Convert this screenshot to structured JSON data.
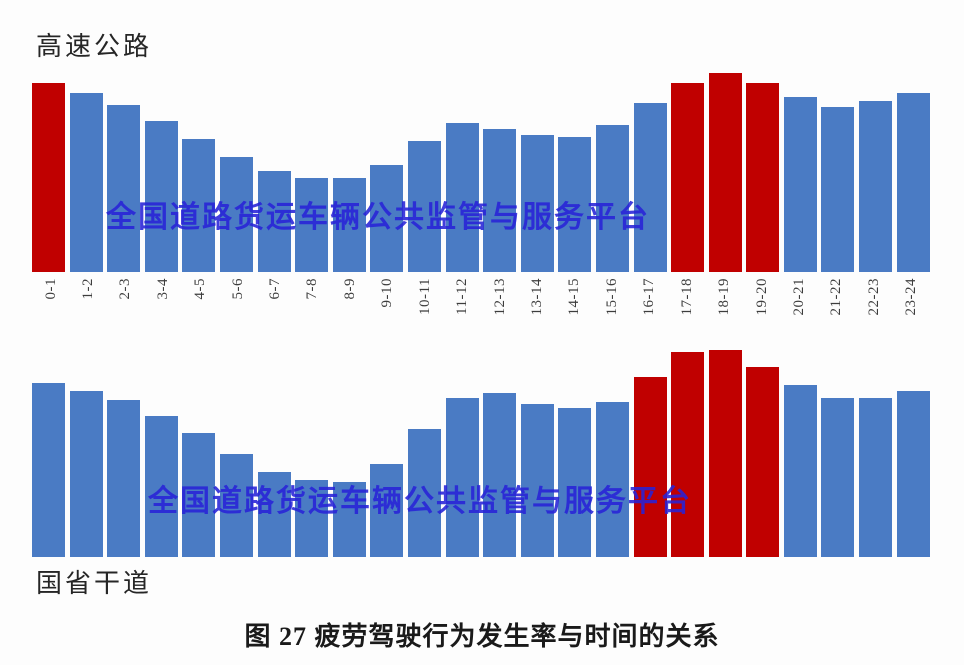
{
  "page": {
    "caption": "图 27 疲劳驾驶行为发生率与时间的关系",
    "watermark_text": "全国道路货运车辆公共监管与服务平台"
  },
  "colors": {
    "bar_blue": "#4A7BC4",
    "bar_red": "#C00000",
    "watermark_blue": "#2823D8",
    "title_text": "#262626",
    "tick_text": "#3D3D3D",
    "background": "#FDFDFD"
  },
  "chart_data": [
    {
      "type": "bar",
      "title": "高速公路",
      "categories": [
        "0-1",
        "1-2",
        "2-3",
        "3-4",
        "4-5",
        "5-6",
        "6-7",
        "7-8",
        "8-9",
        "9-10",
        "10-11",
        "11-12",
        "12-13",
        "13-14",
        "14-15",
        "15-16",
        "16-17",
        "17-18",
        "18-19",
        "19-20",
        "20-21",
        "21-22",
        "22-23",
        "23-24"
      ],
      "values": [
        95,
        90,
        84,
        76,
        67,
        58,
        51,
        47,
        47,
        54,
        66,
        75,
        72,
        69,
        68,
        74,
        85,
        95,
        100,
        95,
        88,
        83,
        86,
        90
      ],
      "value_unit": "percent_of_peak_bar (no numeric y-axis shown in figure)",
      "highlighted_categories": [
        "0-1",
        "17-18",
        "18-19",
        "19-20"
      ],
      "xlabel": "",
      "ylabel": "",
      "x_tick_rotation": -90,
      "gridlines": false,
      "legend": "none"
    },
    {
      "type": "bar",
      "title": "国省干道",
      "categories": [
        "0-1",
        "1-2",
        "2-3",
        "3-4",
        "4-5",
        "5-6",
        "6-7",
        "7-8",
        "8-9",
        "9-10",
        "10-11",
        "11-12",
        "12-13",
        "13-14",
        "14-15",
        "15-16",
        "16-17",
        "17-18",
        "18-19",
        "19-20",
        "20-21",
        "21-22",
        "22-23",
        "23-24"
      ],
      "values": [
        84,
        80,
        76,
        68,
        60,
        50,
        41,
        37,
        36,
        45,
        62,
        77,
        79,
        74,
        72,
        75,
        87,
        99,
        100,
        92,
        83,
        77,
        77,
        80
      ],
      "value_unit": "percent_of_peak_bar (no numeric y-axis shown in figure)",
      "highlighted_categories": [
        "16-17",
        "17-18",
        "18-19",
        "19-20"
      ],
      "xlabel": "",
      "ylabel": "",
      "x_tick_rotation": 0,
      "x_tick_labels_visible": false,
      "gridlines": false,
      "legend": "none"
    }
  ]
}
